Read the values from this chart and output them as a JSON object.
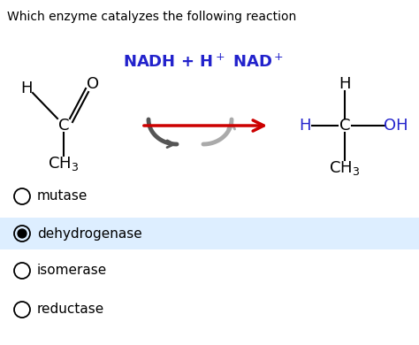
{
  "title": "Which enzyme catalyzes the following reaction",
  "title_fontsize": 10,
  "background_color": "#ffffff",
  "nadh_label_part1": "NADH + H",
  "nadh_superscript": "+",
  "nadh_label_part2": " NAD",
  "nadh_superscript2": "+",
  "nadh_color": "#2222cc",
  "nadh_fontsize": 13,
  "options": [
    "mutase",
    "dehydrogenase",
    "isomerase",
    "reductase"
  ],
  "selected_option": 1,
  "selected_bg": "#ddeeff",
  "option_fontsize": 11,
  "arrow_color": "#cc0000",
  "blue_color": "#2222cc",
  "black": "#000000",
  "gray": "#888888"
}
